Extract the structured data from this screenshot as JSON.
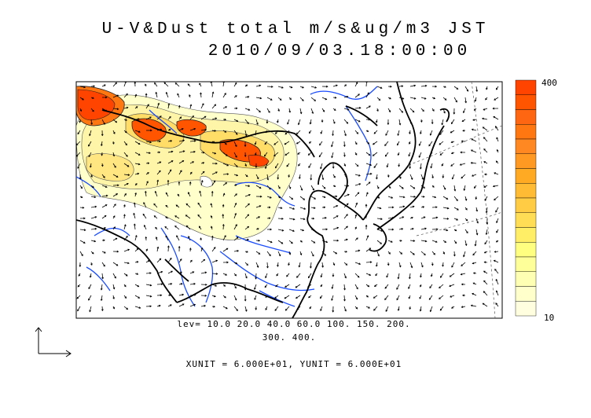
{
  "header": {
    "title_line1": "U-V&Dust total m/s&ug/m3 JST",
    "title_line2": "2010/09/03.18:00:00"
  },
  "colorbar": {
    "max_label": "400",
    "min_label": "10",
    "colors": [
      "#ffffe0",
      "#ffffcc",
      "#ffffb3",
      "#ffff99",
      "#ffff80",
      "#ffee66",
      "#ffdd55",
      "#ffcc44",
      "#ffbb33",
      "#ffaa22",
      "#ff9922",
      "#ff8822",
      "#ff7711",
      "#ff6611",
      "#ff5500",
      "#ff4400"
    ]
  },
  "footer": {
    "lev_line1": "lev= 10.0 20.0 40.0 60.0 100. 150. 200.",
    "lev_line2": "300. 400.",
    "units": "XUNIT = 6.000E+01, YUNIT = 6.000E+01"
  },
  "map": {
    "land_border_color": "#000000",
    "river_color": "#1a4cff",
    "dust_levels": [
      10,
      20,
      40,
      60,
      100,
      150,
      200,
      300,
      400
    ]
  }
}
